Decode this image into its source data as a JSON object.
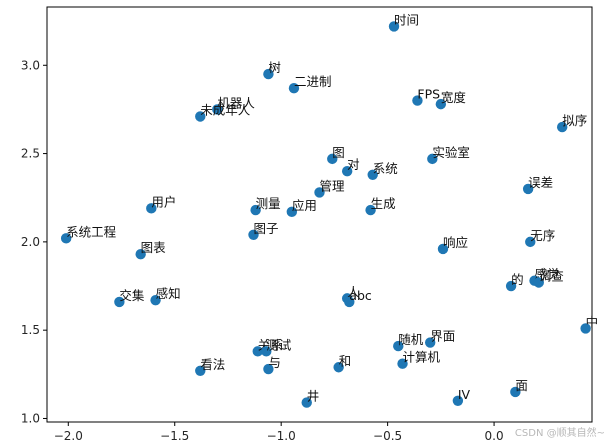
{
  "chart_data": {
    "type": "scatter",
    "title": "",
    "xlabel": "",
    "ylabel": "",
    "xlim": [
      -2.1,
      0.46
    ],
    "ylim": [
      0.98,
      3.33
    ],
    "xticks": [
      -2.0,
      -1.5,
      -1.0,
      -0.5,
      0.0
    ],
    "xtick_labels": [
      "−2.0",
      "−1.5",
      "−1.0",
      "−0.5",
      "0.0"
    ],
    "yticks": [
      1.0,
      1.5,
      2.0,
      2.5,
      3.0
    ],
    "ytick_labels": [
      "1.0",
      "1.5",
      "2.0",
      "2.5",
      "3.0"
    ],
    "grid": false,
    "legend": "none",
    "point_color": "#1f77b4",
    "points": [
      {
        "label": "时间",
        "x": -0.47,
        "y": 3.22
      },
      {
        "label": "树",
        "x": -1.06,
        "y": 2.95
      },
      {
        "label": "二进制",
        "x": -0.94,
        "y": 2.87
      },
      {
        "label": "机器人",
        "x": -1.3,
        "y": 2.75
      },
      {
        "label": "未成年人",
        "x": -1.38,
        "y": 2.71
      },
      {
        "label": "FPS",
        "x": -0.36,
        "y": 2.8
      },
      {
        "label": "宽度",
        "x": -0.25,
        "y": 2.78
      },
      {
        "label": "拟序",
        "x": 0.32,
        "y": 2.65
      },
      {
        "label": "图",
        "x": -0.76,
        "y": 2.47
      },
      {
        "label": "对",
        "x": -0.69,
        "y": 2.4
      },
      {
        "label": "系统",
        "x": -0.57,
        "y": 2.38
      },
      {
        "label": "实验室",
        "x": -0.29,
        "y": 2.47
      },
      {
        "label": "管理",
        "x": -0.82,
        "y": 2.28
      },
      {
        "label": "误差",
        "x": 0.16,
        "y": 2.3
      },
      {
        "label": "用户",
        "x": -1.61,
        "y": 2.19
      },
      {
        "label": "测量",
        "x": -1.12,
        "y": 2.18
      },
      {
        "label": "应用",
        "x": -0.95,
        "y": 2.17
      },
      {
        "label": "生成",
        "x": -0.58,
        "y": 2.18
      },
      {
        "label": "图子",
        "x": -1.13,
        "y": 2.04
      },
      {
        "label": "系统工程",
        "x": -2.01,
        "y": 2.02
      },
      {
        "label": "无序",
        "x": 0.17,
        "y": 2.0
      },
      {
        "label": "响应",
        "x": -0.24,
        "y": 1.96
      },
      {
        "label": "图表",
        "x": -1.66,
        "y": 1.93
      },
      {
        "label": "的",
        "x": 0.08,
        "y": 1.75
      },
      {
        "label": "感觉",
        "x": 0.19,
        "y": 1.78
      },
      {
        "label": "调查",
        "x": 0.21,
        "y": 1.77
      },
      {
        "label": "交集",
        "x": -1.76,
        "y": 1.66
      },
      {
        "label": "感知",
        "x": -1.59,
        "y": 1.67
      },
      {
        "label": "人",
        "x": -0.69,
        "y": 1.68
      },
      {
        "label": "abc",
        "x": -0.68,
        "y": 1.66
      },
      {
        "label": "中",
        "x": 0.43,
        "y": 1.51
      },
      {
        "label": "界面",
        "x": -0.3,
        "y": 1.43
      },
      {
        "label": "随机",
        "x": -0.45,
        "y": 1.41
      },
      {
        "label": "关系",
        "x": -1.11,
        "y": 1.38
      },
      {
        "label": "测试",
        "x": -1.07,
        "y": 1.38
      },
      {
        "label": "计算机",
        "x": -0.43,
        "y": 1.31
      },
      {
        "label": "和",
        "x": -0.73,
        "y": 1.29
      },
      {
        "label": "与",
        "x": -1.06,
        "y": 1.28
      },
      {
        "label": "看法",
        "x": -1.38,
        "y": 1.27
      },
      {
        "label": "面",
        "x": 0.1,
        "y": 1.15
      },
      {
        "label": "井",
        "x": -0.88,
        "y": 1.09
      },
      {
        "label": "IV",
        "x": -0.17,
        "y": 1.1
      }
    ]
  },
  "watermark": "CSDN @顺其自然~"
}
